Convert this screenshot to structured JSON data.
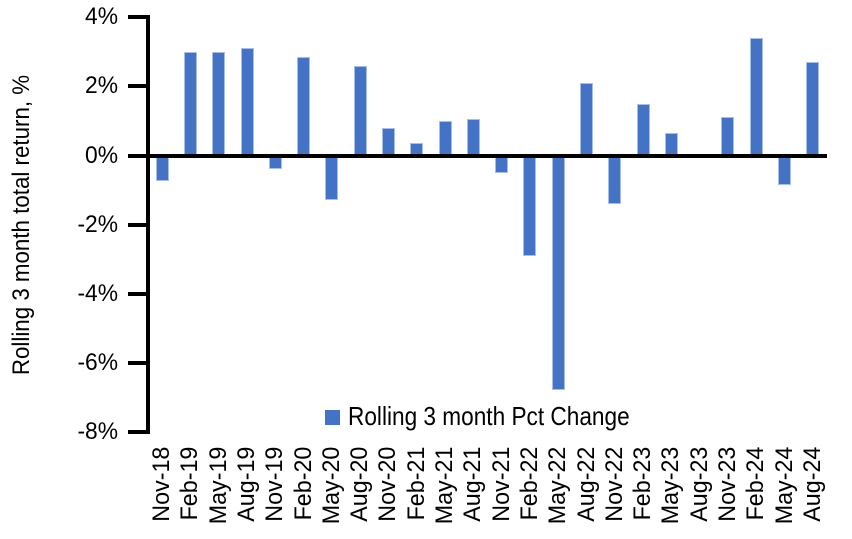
{
  "chart_data": {
    "type": "bar",
    "title": "",
    "ylabel": "Rolling 3 month total return, %",
    "xlabel": "",
    "legend": [
      {
        "label": "Rolling 3 month Pct Change",
        "color": "#4472C4"
      }
    ],
    "legend_position": "bottom-inside",
    "grid": false,
    "ylim": [
      -8,
      4
    ],
    "yticks": {
      "values": [
        4,
        2,
        0,
        -2,
        -4,
        -6,
        -8
      ],
      "labels": [
        "4%",
        "2%",
        "0%",
        "-2%",
        "-4%",
        "-6%",
        "-8%"
      ]
    },
    "categories": [
      "Nov-18",
      "Feb-19",
      "May-19",
      "Aug-19",
      "Nov-19",
      "Feb-20",
      "May-20",
      "Aug-20",
      "Nov-20",
      "Feb-21",
      "May-21",
      "Aug-21",
      "Nov-21",
      "Feb-22",
      "May-22",
      "Aug-22",
      "Nov-22",
      "Feb-23",
      "May-23",
      "Aug-23",
      "Nov-23",
      "Feb-24",
      "May-24",
      "Aug-24"
    ],
    "series": [
      {
        "name": "Rolling 3 month Pct Change",
        "values": [
          -0.75,
          3.0,
          3.0,
          3.1,
          -0.4,
          2.85,
          -1.3,
          2.6,
          0.8,
          0.35,
          1.0,
          1.05,
          -0.5,
          -2.9,
          -6.8,
          2.1,
          -1.4,
          1.5,
          0.65,
          0.0,
          1.1,
          3.4,
          -0.85,
          2.7
        ]
      }
    ],
    "colors": {
      "bar_fill": "#4472C4",
      "bar_border": "#A6BEE8",
      "axis": "#000000",
      "background": "#FFFFFF",
      "text": "#000000"
    }
  }
}
